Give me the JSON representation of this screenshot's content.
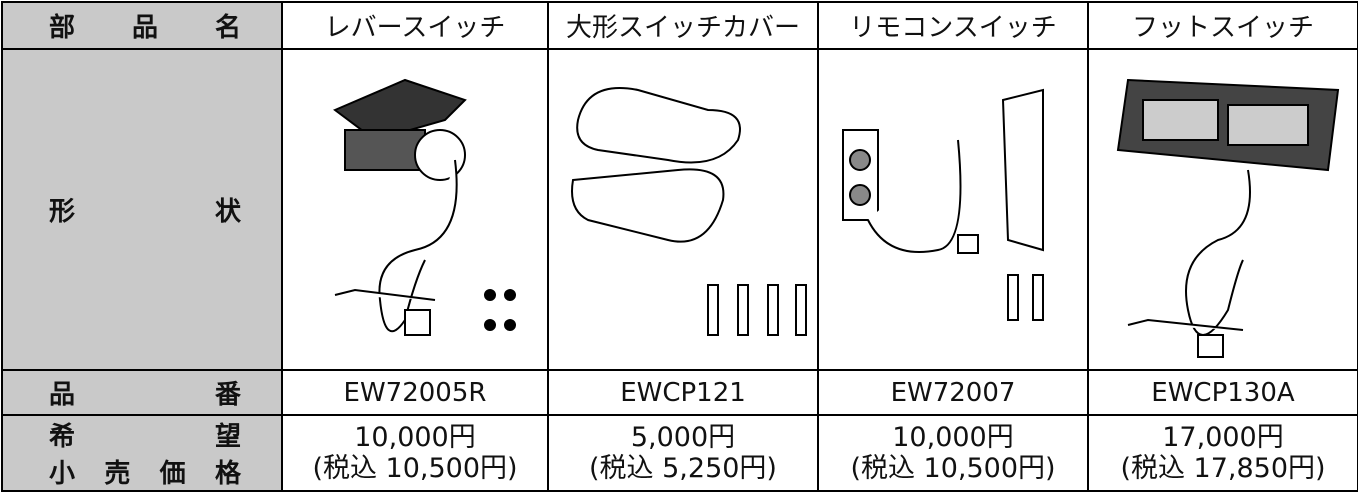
{
  "table": {
    "row_labels": {
      "name": "部品名",
      "shape": "形状",
      "part_number": "品番",
      "price": [
        "希望",
        "小売価格"
      ]
    },
    "columns": [
      {
        "name": "レバースイッチ",
        "part_number": "EW72005R",
        "price": "10,000円",
        "price_tax_included": "(税込 10,500円)"
      },
      {
        "name": "大形スイッチカバー",
        "part_number": "EWCP121",
        "price": "5,000円",
        "price_tax_included": "(税込 5,250円)"
      },
      {
        "name": "リモコンスイッチ",
        "part_number": "EW72007",
        "price": "10,000円",
        "price_tax_included": "(税込 10,500円)"
      },
      {
        "name": "フットスイッチ",
        "part_number": "EWCP130A",
        "price": "17,000円",
        "price_tax_included": "(税込 17,850円)"
      }
    ]
  }
}
